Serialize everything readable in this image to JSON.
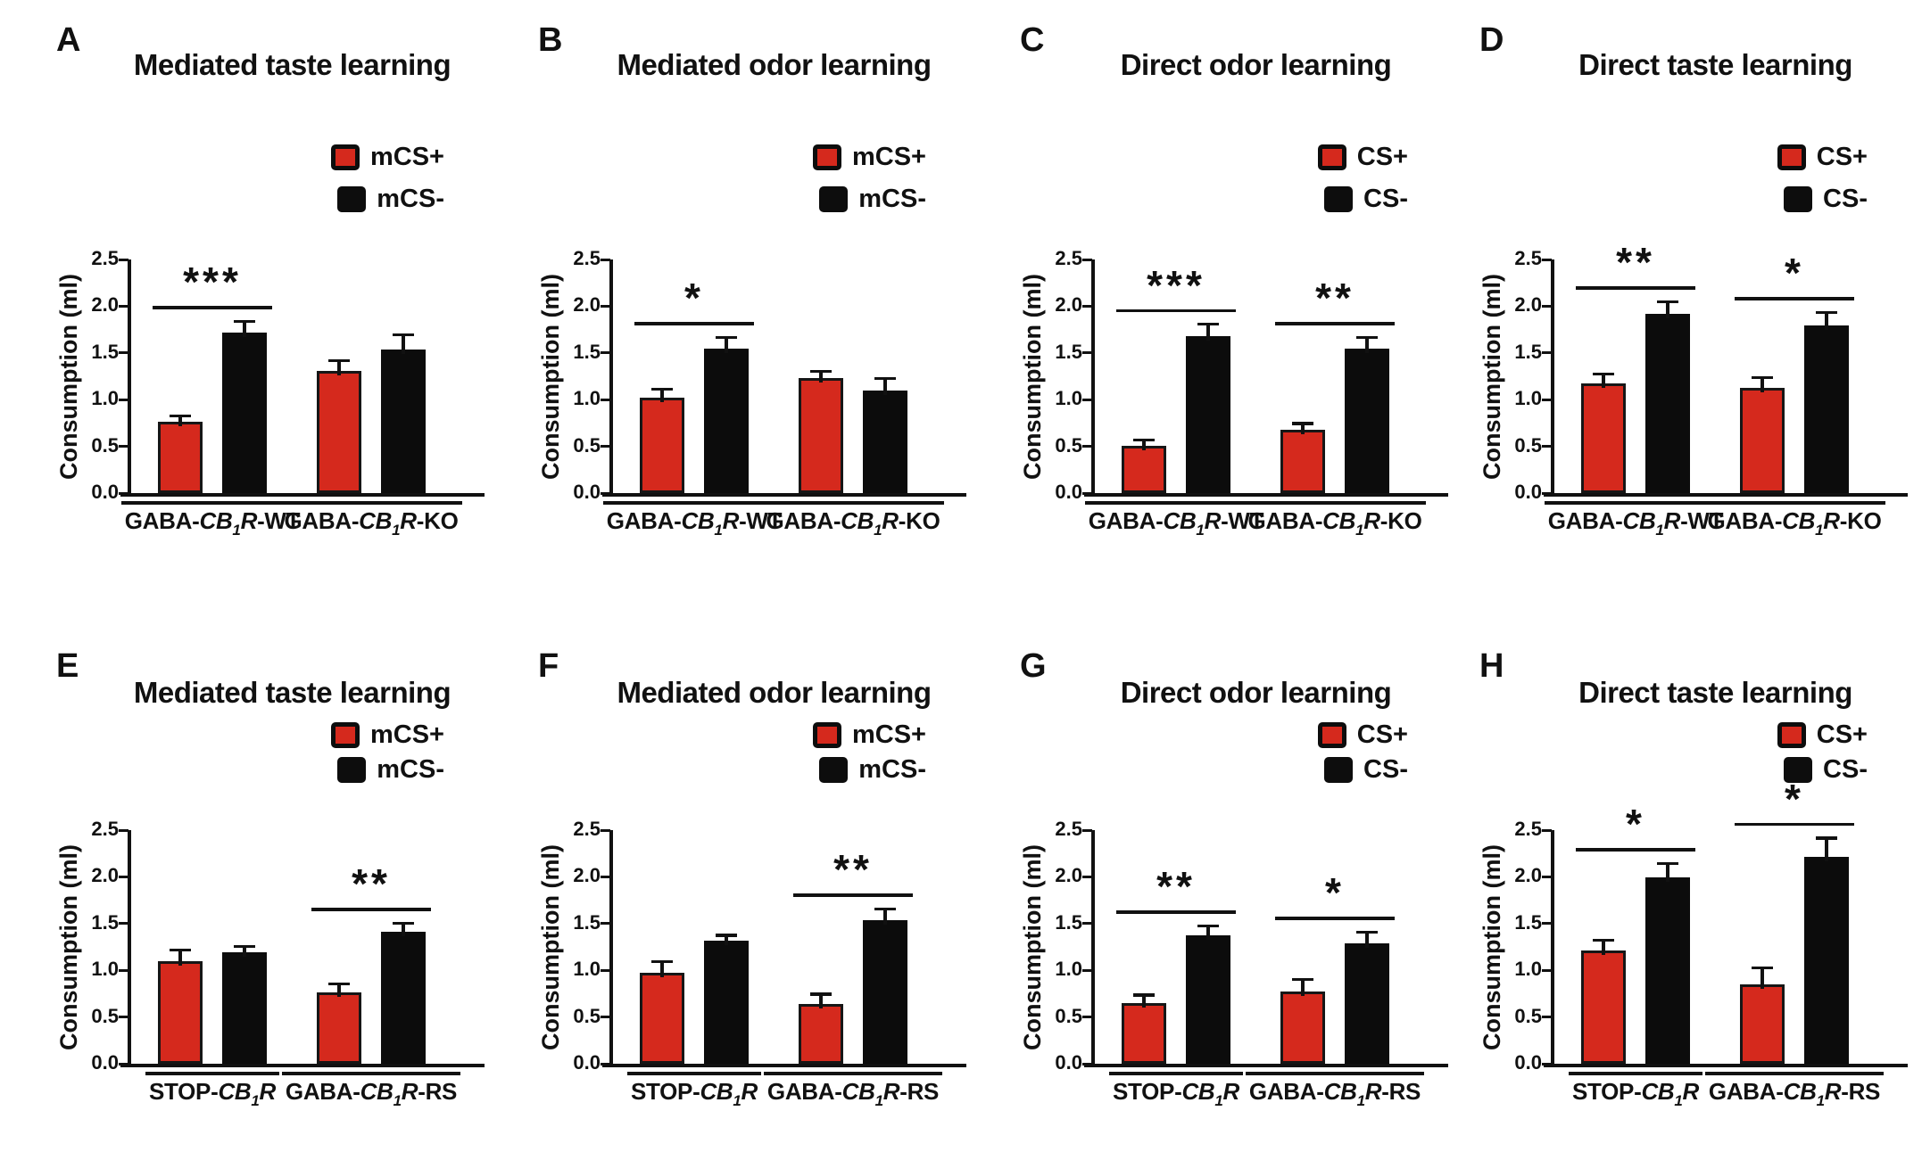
{
  "colors": {
    "cs_plus": "#d5291d",
    "cs_minus": "#0d0d0d",
    "ink": "#111111"
  },
  "axis": {
    "ylabel": "Consumption (ml)",
    "ytick_labels": [
      "2.5",
      "2.0",
      "1.5",
      "1.0",
      "0.5",
      "0.0"
    ],
    "ylim": [
      0,
      2.5
    ]
  },
  "chart_data": [
    {
      "type": "bar",
      "letter": "A",
      "title": "Mediated taste learning",
      "legend": [
        "mCS+",
        "mCS-"
      ],
      "categories": [
        "GABA-CB1R-WT",
        "GABA-CB1R-KO"
      ],
      "category_parts": [
        {
          "pre": "GABA-",
          "gene": "CB",
          "sub": "1",
          "gene_end": "R",
          "post": "-WT"
        },
        {
          "pre": "GABA-",
          "gene": "CB",
          "sub": "1",
          "gene_end": "R",
          "post": "-KO"
        }
      ],
      "series": [
        {
          "name": "mCS+",
          "color_key": "cs_plus",
          "values": [
            0.76,
            1.31
          ],
          "errors": [
            0.08,
            0.12
          ]
        },
        {
          "name": "mCS-",
          "color_key": "cs_minus",
          "values": [
            1.72,
            1.54
          ],
          "errors": [
            0.13,
            0.17
          ]
        }
      ],
      "significance": [
        "***",
        null
      ],
      "ylabel": "Consumption (ml)",
      "ylim": [
        0,
        2.5
      ]
    },
    {
      "type": "bar",
      "letter": "B",
      "title": "Mediated odor learning",
      "legend": [
        "mCS+",
        "mCS-"
      ],
      "categories": [
        "GABA-CB1R-WT",
        "GABA-CB1R-KO"
      ],
      "category_parts": [
        {
          "pre": "GABA-",
          "gene": "CB",
          "sub": "1",
          "gene_end": "R",
          "post": "-WT"
        },
        {
          "pre": "GABA-",
          "gene": "CB",
          "sub": "1",
          "gene_end": "R",
          "post": "-KO"
        }
      ],
      "series": [
        {
          "name": "mCS+",
          "color_key": "cs_plus",
          "values": [
            1.02,
            1.23
          ],
          "errors": [
            0.11,
            0.09
          ]
        },
        {
          "name": "mCS-",
          "color_key": "cs_minus",
          "values": [
            1.55,
            1.1
          ],
          "errors": [
            0.13,
            0.14
          ]
        }
      ],
      "significance": [
        "*",
        null
      ],
      "ylabel": "Consumption (ml)",
      "ylim": [
        0,
        2.5
      ]
    },
    {
      "type": "bar",
      "letter": "C",
      "title": "Direct odor learning",
      "legend": [
        "CS+",
        "CS-"
      ],
      "categories": [
        "GABA-CB1R-WT",
        "GABA-CB1R-KO"
      ],
      "category_parts": [
        {
          "pre": "GABA-",
          "gene": "CB",
          "sub": "1",
          "gene_end": "R",
          "post": "-WT"
        },
        {
          "pre": "GABA-",
          "gene": "CB",
          "sub": "1",
          "gene_end": "R",
          "post": "-KO"
        }
      ],
      "series": [
        {
          "name": "CS+",
          "color_key": "cs_plus",
          "values": [
            0.51,
            0.68
          ],
          "errors": [
            0.07,
            0.08
          ]
        },
        {
          "name": "CS-",
          "color_key": "cs_minus",
          "values": [
            1.68,
            1.55
          ],
          "errors": [
            0.14,
            0.13
          ]
        }
      ],
      "significance": [
        "***",
        "**"
      ],
      "ylabel": "Consumption (ml)",
      "ylim": [
        0,
        2.5
      ]
    },
    {
      "type": "bar",
      "letter": "D",
      "title": "Direct taste learning",
      "legend": [
        "CS+",
        "CS-"
      ],
      "categories": [
        "GABA-CB1R-WT",
        "GABA-CB1R-KO"
      ],
      "category_parts": [
        {
          "pre": "GABA-",
          "gene": "CB",
          "sub": "1",
          "gene_end": "R",
          "post": "-WT"
        },
        {
          "pre": "GABA-",
          "gene": "CB",
          "sub": "1",
          "gene_end": "R",
          "post": "-KO"
        }
      ],
      "series": [
        {
          "name": "CS+",
          "color_key": "cs_plus",
          "values": [
            1.17,
            1.13
          ],
          "errors": [
            0.12,
            0.12
          ]
        },
        {
          "name": "CS-",
          "color_key": "cs_minus",
          "values": [
            1.92,
            1.79
          ],
          "errors": [
            0.14,
            0.16
          ]
        }
      ],
      "significance": [
        "**",
        "*"
      ],
      "ylabel": "Consumption (ml)",
      "ylim": [
        0,
        2.5
      ]
    },
    {
      "type": "bar",
      "letter": "E",
      "title": "Mediated taste learning",
      "legend": [
        "mCS+",
        "mCS-"
      ],
      "categories": [
        "STOP-CB1R",
        "GABA-CB1R-RS"
      ],
      "category_parts": [
        {
          "pre": "STOP-",
          "gene": "CB",
          "sub": "1",
          "gene_end": "R",
          "post": ""
        },
        {
          "pre": "GABA-",
          "gene": "CB",
          "sub": "1",
          "gene_end": "R",
          "post": "-RS"
        }
      ],
      "series": [
        {
          "name": "mCS+",
          "color_key": "cs_plus",
          "values": [
            1.1,
            0.76
          ],
          "errors": [
            0.13,
            0.11
          ]
        },
        {
          "name": "mCS-",
          "color_key": "cs_minus",
          "values": [
            1.19,
            1.41
          ],
          "errors": [
            0.08,
            0.11
          ]
        }
      ],
      "significance": [
        null,
        "**"
      ],
      "ylabel": "Consumption (ml)",
      "ylim": [
        0,
        2.5
      ]
    },
    {
      "type": "bar",
      "letter": "F",
      "title": "Mediated odor learning",
      "legend": [
        "mCS+",
        "mCS-"
      ],
      "categories": [
        "STOP-CB1R",
        "GABA-CB1R-RS"
      ],
      "category_parts": [
        {
          "pre": "STOP-",
          "gene": "CB",
          "sub": "1",
          "gene_end": "R",
          "post": ""
        },
        {
          "pre": "GABA-",
          "gene": "CB",
          "sub": "1",
          "gene_end": "R",
          "post": "-RS"
        }
      ],
      "series": [
        {
          "name": "mCS+",
          "color_key": "cs_plus",
          "values": [
            0.97,
            0.64
          ],
          "errors": [
            0.14,
            0.12
          ]
        },
        {
          "name": "mCS-",
          "color_key": "cs_minus",
          "values": [
            1.32,
            1.54
          ],
          "errors": [
            0.07,
            0.13
          ]
        }
      ],
      "significance": [
        null,
        "**"
      ],
      "ylabel": "Consumption (ml)",
      "ylim": [
        0,
        2.5
      ]
    },
    {
      "type": "bar",
      "letter": "G",
      "title": "Direct odor learning",
      "legend": [
        "CS+",
        "CS-"
      ],
      "categories": [
        "STOP-CB1R",
        "GABA-CB1R-RS"
      ],
      "category_parts": [
        {
          "pre": "STOP-",
          "gene": "CB",
          "sub": "1",
          "gene_end": "R",
          "post": ""
        },
        {
          "pre": "GABA-",
          "gene": "CB",
          "sub": "1",
          "gene_end": "R",
          "post": "-RS"
        }
      ],
      "series": [
        {
          "name": "CS+",
          "color_key": "cs_plus",
          "values": [
            0.65,
            0.77
          ],
          "errors": [
            0.1,
            0.15
          ]
        },
        {
          "name": "CS-",
          "color_key": "cs_minus",
          "values": [
            1.37,
            1.29
          ],
          "errors": [
            0.12,
            0.13
          ]
        }
      ],
      "significance": [
        "**",
        "*"
      ],
      "ylabel": "Consumption (ml)",
      "ylim": [
        0,
        2.5
      ]
    },
    {
      "type": "bar",
      "letter": "H",
      "title": "Direct taste learning",
      "legend": [
        "CS+",
        "CS-"
      ],
      "categories": [
        "STOP-CB1R",
        "GABA-CB1R-RS"
      ],
      "category_parts": [
        {
          "pre": "STOP-",
          "gene": "CB",
          "sub": "1",
          "gene_end": "R",
          "post": ""
        },
        {
          "pre": "GABA-",
          "gene": "CB",
          "sub": "1",
          "gene_end": "R",
          "post": "-RS"
        }
      ],
      "series": [
        {
          "name": "CS+",
          "color_key": "cs_plus",
          "values": [
            1.21,
            0.85
          ],
          "errors": [
            0.13,
            0.19
          ]
        },
        {
          "name": "CS-",
          "color_key": "cs_minus",
          "values": [
            1.99,
            2.21
          ],
          "errors": [
            0.17,
            0.22
          ]
        }
      ],
      "significance": [
        "*",
        "*"
      ],
      "ylabel": "Consumption (ml)",
      "ylim": [
        0,
        2.5
      ]
    }
  ]
}
